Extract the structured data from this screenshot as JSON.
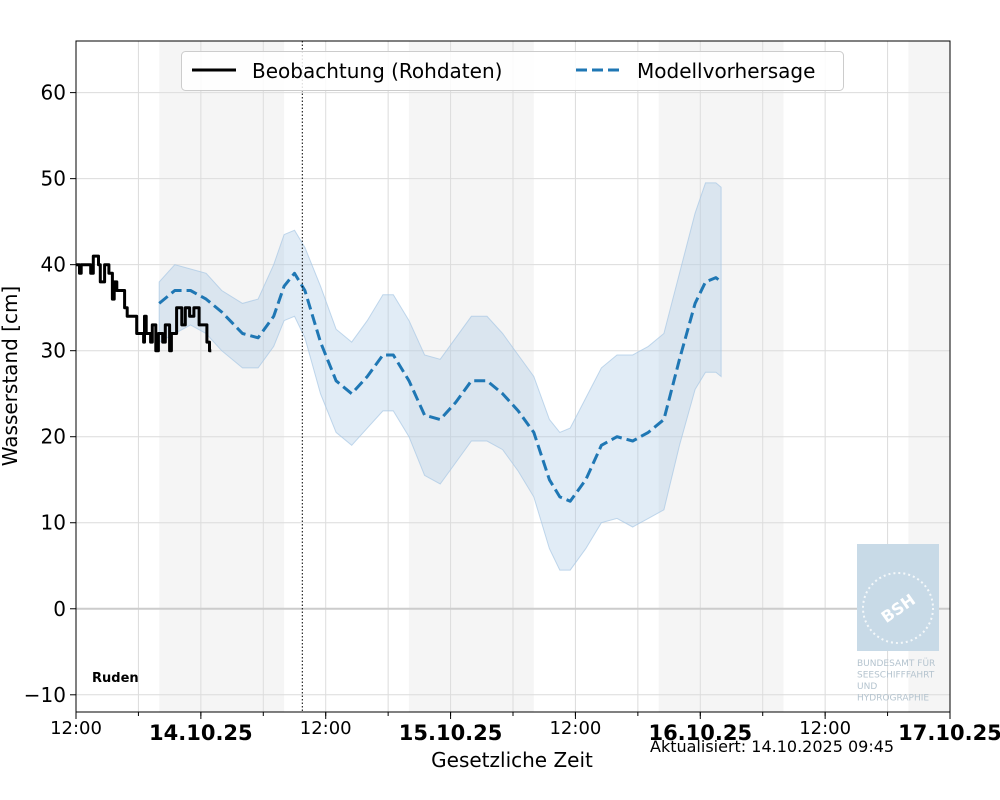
{
  "chart_data": {
    "type": "line",
    "title": "",
    "xlabel": "Gesetzliche Zeit",
    "ylabel": "Wasserstand [cm]",
    "ylim": [
      -12,
      66
    ],
    "xlim": [
      "2025-10-13T12:00",
      "2025-10-17T00:00"
    ],
    "grid": true,
    "legend_position": "top-center",
    "y_ticks": [
      -10,
      0,
      10,
      20,
      30,
      40,
      50,
      60
    ],
    "y_tick_labels": [
      "−10",
      "0",
      "10",
      "20",
      "30",
      "40",
      "50",
      "60"
    ],
    "x_ticks": [
      {
        "x": "2025-10-13T12:00",
        "label": "12:00",
        "bold": false
      },
      {
        "x": "2025-10-14T00:00",
        "label": "14.10.25",
        "bold": true
      },
      {
        "x": "2025-10-14T12:00",
        "label": "12:00",
        "bold": false
      },
      {
        "x": "2025-10-15T00:00",
        "label": "15.10.25",
        "bold": true
      },
      {
        "x": "2025-10-15T12:00",
        "label": "12:00",
        "bold": false
      },
      {
        "x": "2025-10-16T00:00",
        "label": "16.10.25",
        "bold": true
      },
      {
        "x": "2025-10-16T12:00",
        "label": "12:00",
        "bold": false
      },
      {
        "x": "2025-10-17T00:00",
        "label": "17.10.25",
        "bold": true
      }
    ],
    "now_line": "2025-10-14T09:45",
    "night_bands": [
      [
        "2025-10-13T20:00",
        "2025-10-14T08:00"
      ],
      [
        "2025-10-14T20:00",
        "2025-10-15T08:00"
      ],
      [
        "2025-10-15T20:00",
        "2025-10-16T08:00"
      ],
      [
        "2025-10-16T20:00",
        "2025-10-17T00:00"
      ]
    ],
    "station": "Ruden",
    "series": [
      {
        "name": "Beobachtung (Rohdaten)",
        "style": "solid",
        "color": "#000000",
        "points": [
          [
            "2025-10-13T12:00",
            40
          ],
          [
            "2025-10-13T12:20",
            39
          ],
          [
            "2025-10-13T12:30",
            40
          ],
          [
            "2025-10-13T13:25",
            39
          ],
          [
            "2025-10-13T13:40",
            41
          ],
          [
            "2025-10-13T14:10",
            40
          ],
          [
            "2025-10-13T14:20",
            38
          ],
          [
            "2025-10-13T14:45",
            40
          ],
          [
            "2025-10-13T15:10",
            39
          ],
          [
            "2025-10-13T15:30",
            36
          ],
          [
            "2025-10-13T15:40",
            38
          ],
          [
            "2025-10-13T15:55",
            37
          ],
          [
            "2025-10-13T16:40",
            35
          ],
          [
            "2025-10-13T16:55",
            34
          ],
          [
            "2025-10-13T17:50",
            32
          ],
          [
            "2025-10-13T18:30",
            31
          ],
          [
            "2025-10-13T18:35",
            34
          ],
          [
            "2025-10-13T18:45",
            32
          ],
          [
            "2025-10-13T19:10",
            31
          ],
          [
            "2025-10-13T19:20",
            33
          ],
          [
            "2025-10-13T19:40",
            30
          ],
          [
            "2025-10-13T19:55",
            32
          ],
          [
            "2025-10-13T20:20",
            31
          ],
          [
            "2025-10-13T20:35",
            33
          ],
          [
            "2025-10-13T21:00",
            30
          ],
          [
            "2025-10-13T21:10",
            32
          ],
          [
            "2025-10-13T21:40",
            35
          ],
          [
            "2025-10-13T22:10",
            33
          ],
          [
            "2025-10-13T22:30",
            35
          ],
          [
            "2025-10-13T22:55",
            34
          ],
          [
            "2025-10-13T23:20",
            35
          ],
          [
            "2025-10-13T23:50",
            33
          ],
          [
            "2025-10-14T00:35",
            31
          ],
          [
            "2025-10-14T00:50",
            30
          ],
          [
            "2025-10-14T01:00",
            30
          ]
        ]
      },
      {
        "name": "Modellvorhersage",
        "style": "dashed",
        "color": "#1f77b4",
        "points": [
          [
            "2025-10-13T20:00",
            35.5
          ],
          [
            "2025-10-13T21:30",
            37
          ],
          [
            "2025-10-13T23:00",
            37
          ],
          [
            "2025-10-14T00:30",
            36
          ],
          [
            "2025-10-14T02:00",
            34.5
          ],
          [
            "2025-10-14T04:00",
            32
          ],
          [
            "2025-10-14T05:30",
            31.5
          ],
          [
            "2025-10-14T07:00",
            34
          ],
          [
            "2025-10-14T08:00",
            37.5
          ],
          [
            "2025-10-14T09:00",
            39
          ],
          [
            "2025-10-14T10:00",
            37
          ],
          [
            "2025-10-14T11:30",
            31
          ],
          [
            "2025-10-14T13:00",
            26.5
          ],
          [
            "2025-10-14T14:30",
            25
          ],
          [
            "2025-10-14T16:00",
            27
          ],
          [
            "2025-10-14T17:30",
            29.5
          ],
          [
            "2025-10-14T18:30",
            29.5
          ],
          [
            "2025-10-14T20:00",
            26.5
          ],
          [
            "2025-10-14T21:30",
            22.5
          ],
          [
            "2025-10-14T23:00",
            22
          ],
          [
            "2025-10-15T00:30",
            24
          ],
          [
            "2025-10-15T02:00",
            26.5
          ],
          [
            "2025-10-15T03:30",
            26.5
          ],
          [
            "2025-10-15T05:00",
            25
          ],
          [
            "2025-10-15T06:30",
            23
          ],
          [
            "2025-10-15T08:00",
            20.5
          ],
          [
            "2025-10-15T09:30",
            15
          ],
          [
            "2025-10-15T10:30",
            13
          ],
          [
            "2025-10-15T11:30",
            12.5
          ],
          [
            "2025-10-15T13:00",
            15
          ],
          [
            "2025-10-15T14:30",
            19
          ],
          [
            "2025-10-15T16:00",
            20
          ],
          [
            "2025-10-15T17:30",
            19.5
          ],
          [
            "2025-10-15T19:00",
            20.5
          ],
          [
            "2025-10-15T20:30",
            22
          ],
          [
            "2025-10-15T22:00",
            29
          ],
          [
            "2025-10-15T23:30",
            35.5
          ],
          [
            "2025-10-16T00:30",
            38
          ],
          [
            "2025-10-16T01:30",
            38.5
          ],
          [
            "2025-10-16T02:00",
            38
          ]
        ]
      }
    ],
    "band": {
      "color": "#a8c8e4",
      "points": [
        [
          "2025-10-13T20:00",
          31,
          38
        ],
        [
          "2025-10-13T21:30",
          32,
          40
        ],
        [
          "2025-10-13T23:00",
          33,
          39.5
        ],
        [
          "2025-10-14T00:30",
          32,
          39
        ],
        [
          "2025-10-14T02:00",
          30,
          37
        ],
        [
          "2025-10-14T04:00",
          28,
          35.5
        ],
        [
          "2025-10-14T05:30",
          28,
          36
        ],
        [
          "2025-10-14T07:00",
          30.5,
          40
        ],
        [
          "2025-10-14T08:00",
          33.5,
          43.5
        ],
        [
          "2025-10-14T09:00",
          34,
          44
        ],
        [
          "2025-10-14T10:00",
          31.5,
          42
        ],
        [
          "2025-10-14T11:30",
          25,
          37.5
        ],
        [
          "2025-10-14T13:00",
          20.5,
          32.5
        ],
        [
          "2025-10-14T14:30",
          19,
          31
        ],
        [
          "2025-10-14T16:00",
          21,
          33.5
        ],
        [
          "2025-10-14T17:30",
          23,
          36.5
        ],
        [
          "2025-10-14T18:30",
          23,
          36.5
        ],
        [
          "2025-10-14T20:00",
          20,
          33.5
        ],
        [
          "2025-10-14T21:30",
          15.5,
          29.5
        ],
        [
          "2025-10-14T23:00",
          14.5,
          29
        ],
        [
          "2025-10-15T00:30",
          17,
          31.5
        ],
        [
          "2025-10-15T02:00",
          19.5,
          34
        ],
        [
          "2025-10-15T03:30",
          19.5,
          34
        ],
        [
          "2025-10-15T05:00",
          18.5,
          32
        ],
        [
          "2025-10-15T06:30",
          16,
          29.5
        ],
        [
          "2025-10-15T08:00",
          13,
          27
        ],
        [
          "2025-10-15T09:30",
          7,
          22
        ],
        [
          "2025-10-15T10:30",
          4.5,
          20.5
        ],
        [
          "2025-10-15T11:30",
          4.5,
          21
        ],
        [
          "2025-10-15T13:00",
          7,
          24.5
        ],
        [
          "2025-10-15T14:30",
          10,
          28
        ],
        [
          "2025-10-15T16:00",
          10.5,
          29.5
        ],
        [
          "2025-10-15T17:30",
          9.5,
          29.5
        ],
        [
          "2025-10-15T19:00",
          10.5,
          30.5
        ],
        [
          "2025-10-15T20:30",
          11.5,
          32
        ],
        [
          "2025-10-15T22:00",
          19,
          39
        ],
        [
          "2025-10-15T23:30",
          25.5,
          46
        ],
        [
          "2025-10-16T00:30",
          27.5,
          49.5
        ],
        [
          "2025-10-16T01:30",
          27.5,
          49.5
        ],
        [
          "2025-10-16T02:00",
          27,
          49
        ]
      ]
    },
    "logo_text": [
      "BUNDESAMT FÜR",
      "SEESCHIFFFAHRT",
      "UND",
      "HYDROGRAPHIE"
    ],
    "logo_mark": "BSH"
  },
  "footer": {
    "updated": "Aktualisiert: 14.10.2025 09:45"
  }
}
